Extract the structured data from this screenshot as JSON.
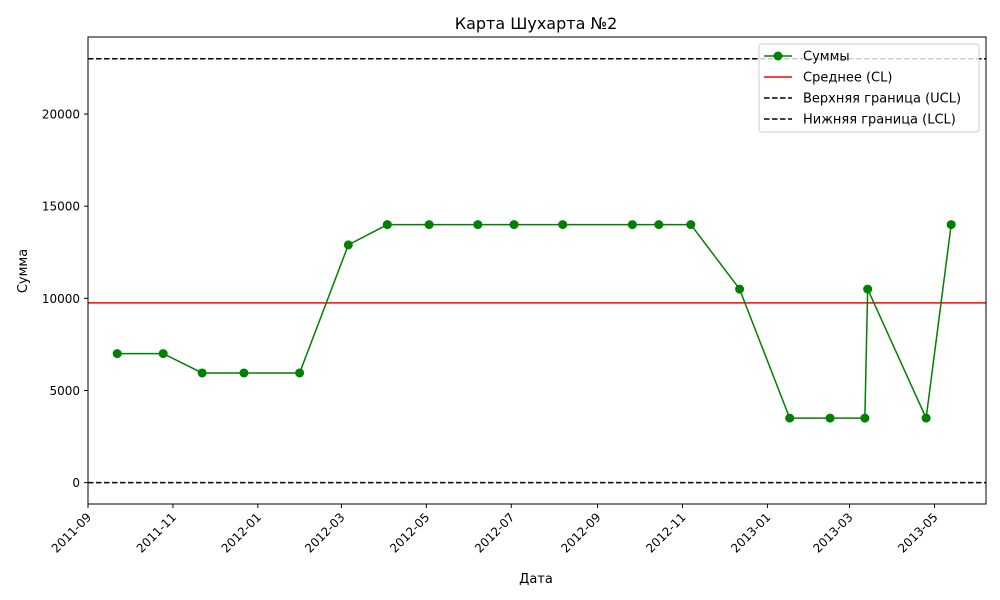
{
  "chart_data": {
    "type": "line",
    "title": "Карта Шухарта №2",
    "xlabel": "Дата",
    "ylabel": "Сумма",
    "xlim": [
      "2011-09-01",
      "2013-06-07"
    ],
    "ylim": [
      -1160,
      24180
    ],
    "x_ticks": [
      "2011-09",
      "2011-11",
      "2012-01",
      "2012-03",
      "2012-05",
      "2012-07",
      "2012-09",
      "2012-11",
      "2013-01",
      "2013-03",
      "2013-05"
    ],
    "y_ticks": [
      0,
      5000,
      10000,
      15000,
      20000
    ],
    "grid": false,
    "legend_position": "top-right",
    "series": [
      {
        "name": "Суммы",
        "color": "#008000",
        "marker": "circle",
        "x": [
          "2011-09-22",
          "2011-10-25",
          "2011-11-22",
          "2011-12-22",
          "2012-01-31",
          "2012-03-06",
          "2012-04-03",
          "2012-05-03",
          "2012-06-07",
          "2012-07-03",
          "2012-08-07",
          "2012-09-26",
          "2012-10-15",
          "2012-11-07",
          "2012-12-12",
          "2013-01-17",
          "2013-02-15",
          "2013-03-12",
          "2013-03-14",
          "2013-04-25",
          "2013-05-13"
        ],
        "y": [
          7000,
          7000,
          5950,
          5950,
          5950,
          12900,
          14000,
          14000,
          14000,
          14000,
          14000,
          14000,
          14000,
          14000,
          10500,
          3500,
          3500,
          3500,
          10500,
          3500,
          14000
        ]
      }
    ],
    "lines": [
      {
        "name": "Среднее (CL)",
        "y": 9750,
        "color": "#ff0000",
        "style": "solid"
      },
      {
        "name": "Верхняя граница (UCL)",
        "y": 23000,
        "color": "#000000",
        "style": "dashed"
      },
      {
        "name": "Нижняя граница (LCL)",
        "y": 0,
        "color": "#000000",
        "style": "dashed"
      }
    ]
  }
}
